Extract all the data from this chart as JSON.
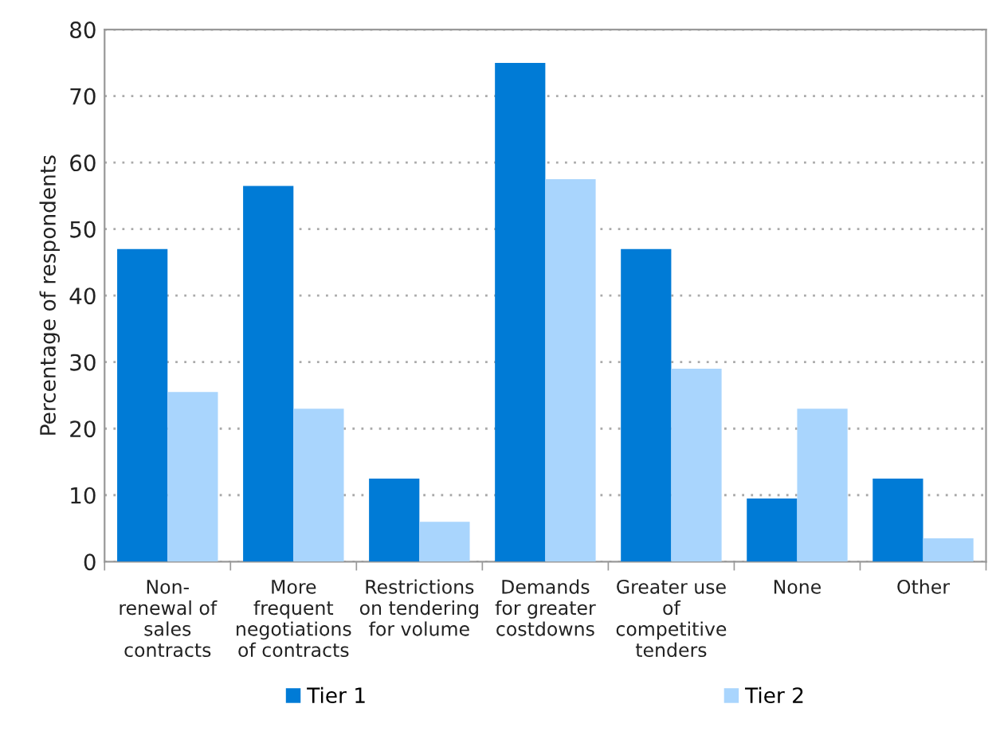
{
  "chart_data": {
    "type": "bar",
    "ylabel": "Percentage of respondents",
    "categories": [
      "Non-\nrenewal of\nsales\ncontracts",
      "More\nfrequent\nnegotiations\nof contracts",
      "Restrictions\non tendering\nfor volume",
      "Demands\nfor greater\ncostdowns",
      "Greater use\nof\ncompetitive\ntenders",
      "None",
      "Other"
    ],
    "series": [
      {
        "name": "Tier 1",
        "color": "#007bd6",
        "values": [
          47,
          56.5,
          12.5,
          75,
          47,
          9.5,
          12.5
        ]
      },
      {
        "name": "Tier 2",
        "color": "#a9d5fd",
        "values": [
          25.5,
          23,
          6,
          57.5,
          29,
          23,
          3.5
        ]
      }
    ],
    "ylim": [
      0,
      80
    ],
    "yticks": [
      0,
      10,
      20,
      30,
      40,
      50,
      60,
      70,
      80
    ],
    "grid": "y",
    "legend": "bottom"
  }
}
